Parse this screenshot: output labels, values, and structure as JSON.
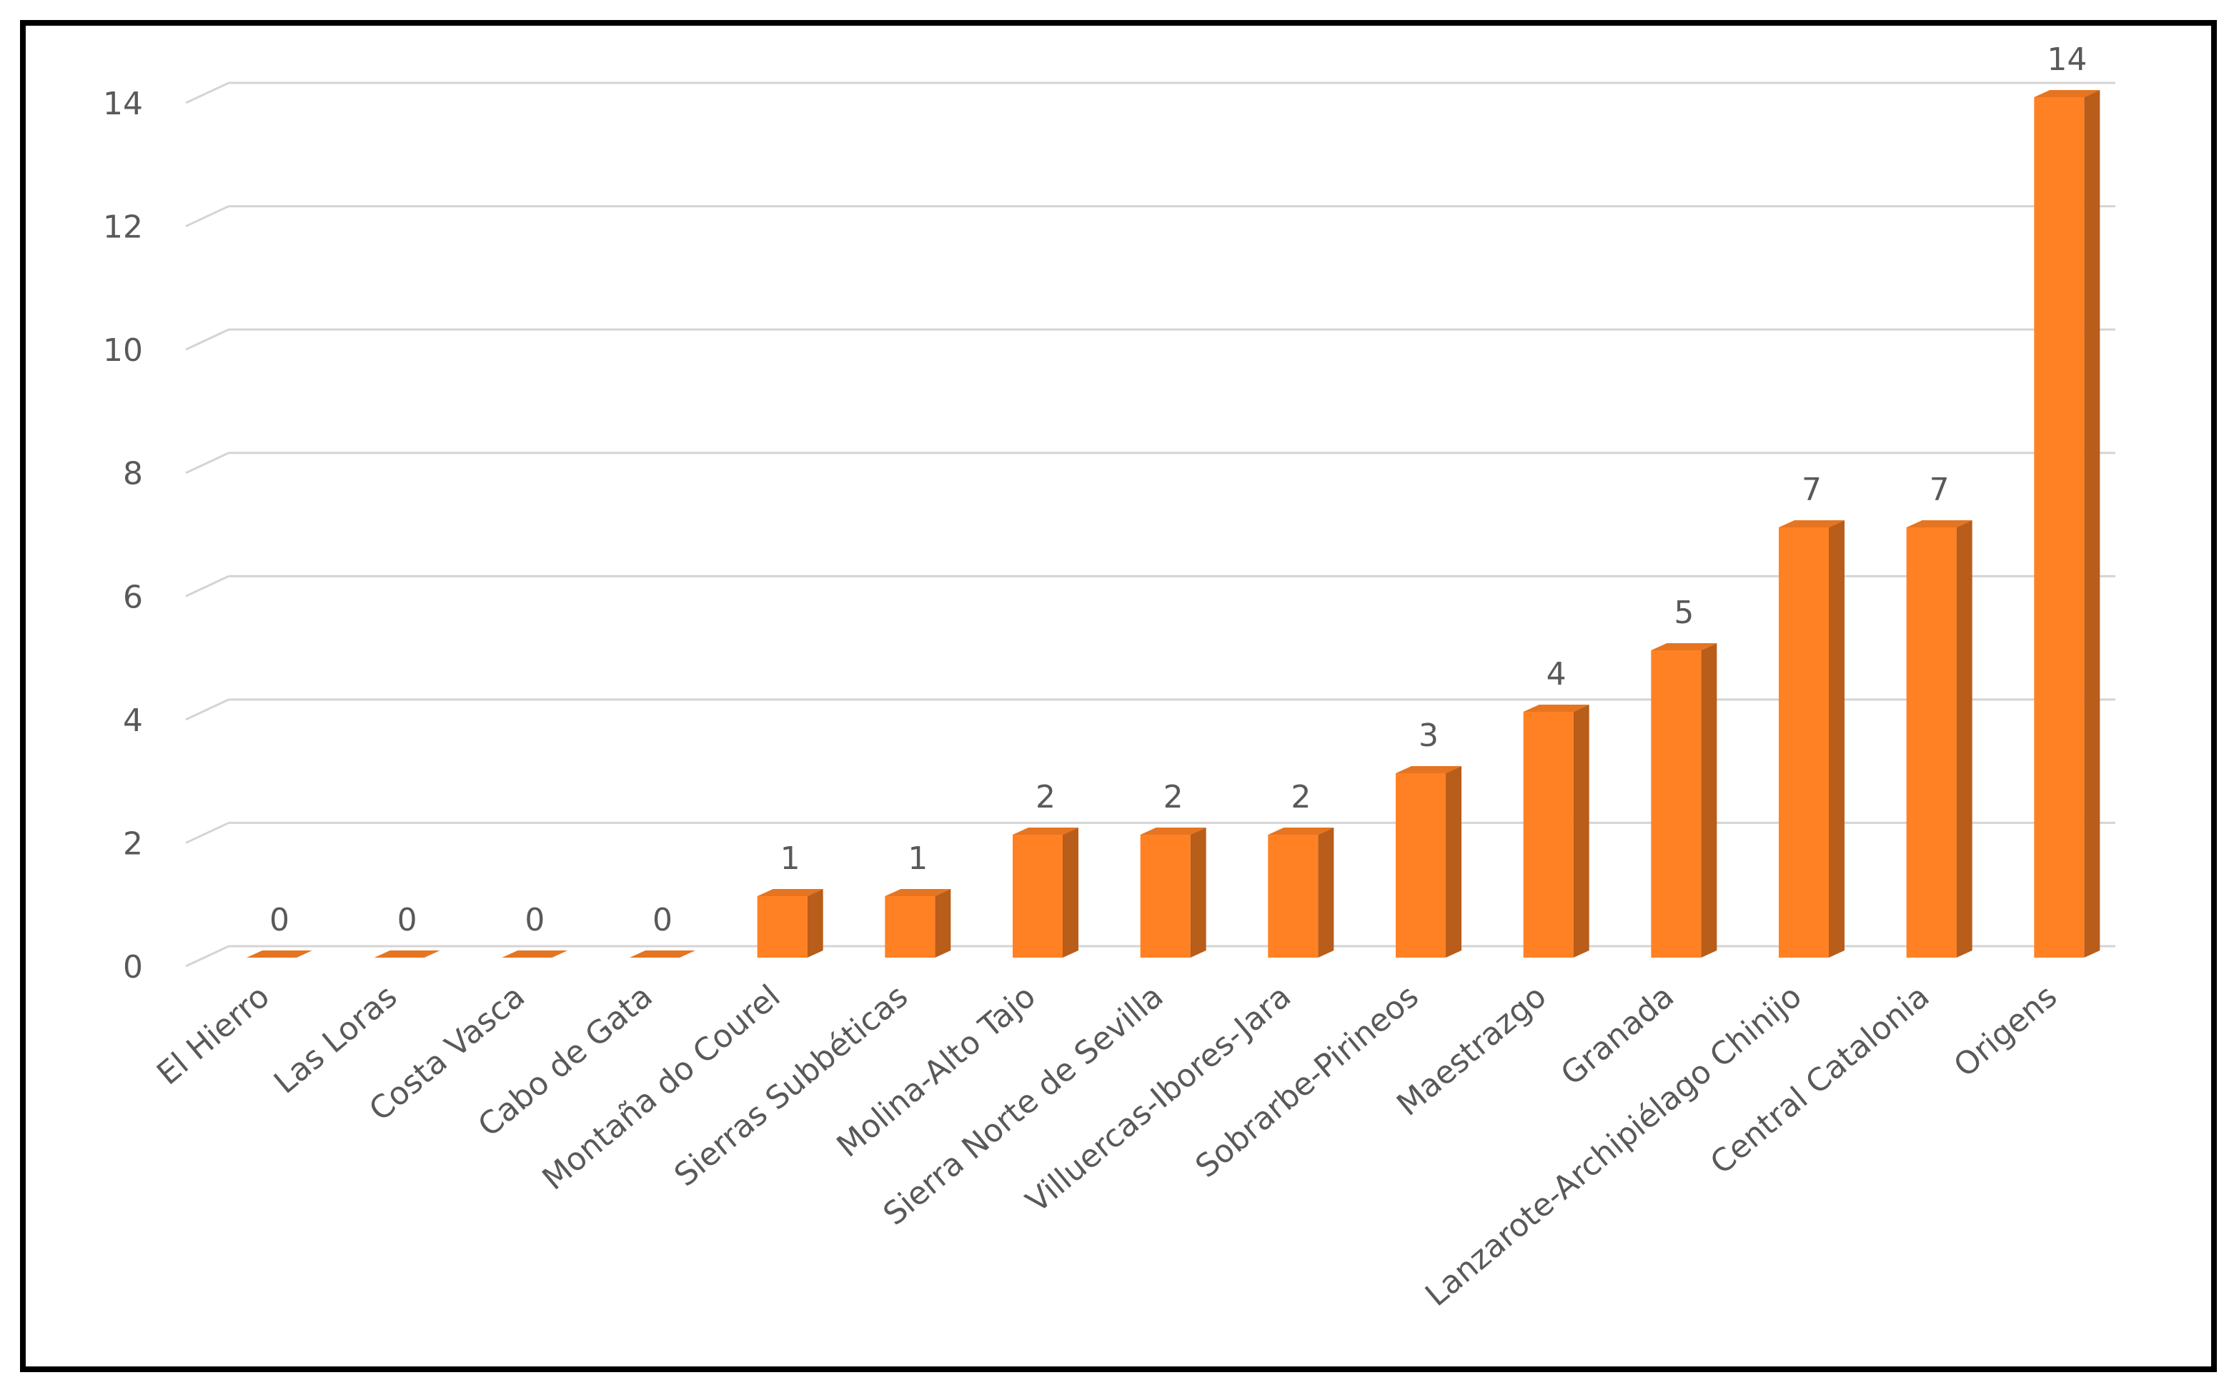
{
  "chart_data": {
    "type": "bar3d",
    "categories": [
      "El Hierro",
      "Las Loras",
      "Costa Vasca",
      "Cabo de Gata",
      "Montaña do Courel",
      "Sierras Subbéticas",
      "Molina-Alto Tajo",
      "Sierra Norte de Sevilla",
      "Villuercas-Ibores-Jara",
      "Sobrarbe-Pirineos",
      "Maestrazgo",
      "Granada",
      "Lanzarote-Archipiélago Chinijo",
      "Central Catalonia",
      "Origens"
    ],
    "values": [
      0,
      0,
      0,
      0,
      1,
      1,
      2,
      2,
      2,
      3,
      4,
      5,
      7,
      7,
      14
    ],
    "color": "#ff8124",
    "ylim": [
      0,
      14
    ],
    "yticks": [
      0,
      2,
      4,
      6,
      8,
      10,
      12,
      14
    ],
    "grid": true
  }
}
